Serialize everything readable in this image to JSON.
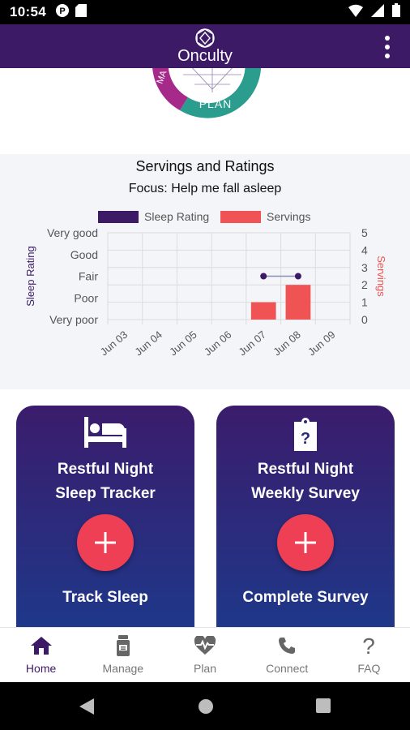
{
  "status_bar": {
    "time": "10:54",
    "icons": [
      "parking-notification-icon",
      "sd-card-icon",
      "wifi-icon",
      "signal-icon",
      "battery-icon"
    ]
  },
  "app_bar": {
    "logo_text": "Onculty",
    "overflow_icon": "more-vert-icon"
  },
  "hero": {
    "plan_label": "PLAN",
    "partial_label": "MA"
  },
  "chart_section": {
    "title": "Servings and Ratings",
    "subtitle": "Focus: Help me fall asleep"
  },
  "chart_data": {
    "type": "bar",
    "categories": [
      "Jun 03",
      "Jun 04",
      "Jun 05",
      "Jun 06",
      "Jun 07",
      "Jun 08",
      "Jun 09"
    ],
    "series": [
      {
        "name": "Sleep Rating",
        "type": "line",
        "axis": "left",
        "color": "#3d1a66",
        "values": [
          null,
          null,
          null,
          null,
          3,
          3,
          null
        ]
      },
      {
        "name": "Servings",
        "type": "bar",
        "axis": "right",
        "color": "#f05353",
        "values": [
          0,
          0,
          0,
          0,
          1,
          2,
          0
        ]
      }
    ],
    "ylabel": "Sleep Rating",
    "y2label": "Servings",
    "y_tick_labels": [
      "Very poor",
      "Poor",
      "Fair",
      "Good",
      "Very good"
    ],
    "ylim": [
      1,
      5
    ],
    "y2lim": [
      0,
      5
    ],
    "y2_ticks": [
      "0",
      "1",
      "2",
      "3",
      "4",
      "5"
    ],
    "legend_position": "top",
    "grid": true
  },
  "cards": [
    {
      "icon": "bed-icon",
      "title_line1": "Restful Night",
      "title_line2": "Sleep Tracker",
      "add_icon": "plus-icon",
      "action": "Track Sleep"
    },
    {
      "icon": "clipboard-question-icon",
      "title_line1": "Restful Night",
      "title_line2": "Weekly Survey",
      "add_icon": "plus-icon",
      "action": "Complete Survey"
    }
  ],
  "bottom_nav": [
    {
      "label": "Home",
      "icon": "home-icon",
      "active": true
    },
    {
      "label": "Manage",
      "icon": "bottle-icon",
      "active": false
    },
    {
      "label": "Plan",
      "icon": "heartbeat-icon",
      "active": false
    },
    {
      "label": "Connect",
      "icon": "phone-icon",
      "active": false
    },
    {
      "label": "FAQ",
      "icon": "question-icon",
      "active": false
    }
  ],
  "colors": {
    "primary": "#3d1a66",
    "accent": "#ee3f55",
    "servings": "#f05353",
    "teal": "#2a9d8f",
    "magenta": "#a52a8a"
  }
}
